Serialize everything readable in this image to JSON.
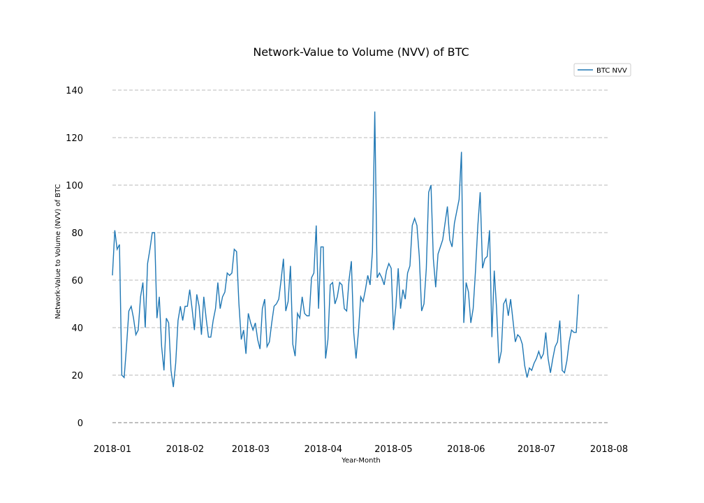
{
  "chart_data": {
    "type": "line",
    "title": "Network-Value to Volume (NVV) of BTC",
    "xlabel": "Year-Month",
    "ylabel": "Network-Value to Volume (NVV) of BTC",
    "x_ticks": [
      "2018-01",
      "2018-02",
      "2018-03",
      "2018-04",
      "2018-05",
      "2018-06",
      "2018-07",
      "2018-08"
    ],
    "y_ticks": [
      0,
      20,
      40,
      60,
      80,
      100,
      120,
      140
    ],
    "ylim": [
      -5,
      145
    ],
    "xlim": [
      "2018-01-01",
      "2018-08-01"
    ],
    "grid": "horizontal-dashed",
    "legend_position": "top-right",
    "series_color": "#1f77b4",
    "series": [
      {
        "name": "BTC NVV",
        "start_date": "2018-01-01",
        "values": [
          62,
          81,
          73,
          75,
          20,
          19,
          32,
          47,
          49,
          44,
          37,
          39,
          53,
          59,
          40,
          67,
          73,
          80,
          80,
          44,
          53,
          32,
          22,
          44,
          42,
          22,
          15,
          25,
          43,
          49,
          43,
          49,
          49,
          56,
          48,
          39,
          54,
          49,
          37,
          53,
          44,
          36,
          36,
          43,
          48,
          59,
          48,
          53,
          55,
          63,
          62,
          63,
          73,
          72,
          50,
          35,
          39,
          29,
          46,
          42,
          39,
          42,
          35,
          31,
          48,
          52,
          32,
          34,
          42,
          49,
          50,
          52,
          60,
          69,
          47,
          51,
          66,
          33,
          28,
          46,
          44,
          53,
          46,
          45,
          45,
          61,
          63,
          83,
          48,
          74,
          74,
          27,
          35,
          58,
          59,
          50,
          53,
          59,
          58,
          48,
          47,
          60,
          68,
          38,
          27,
          38,
          53,
          51,
          56,
          62,
          58,
          72,
          131,
          61,
          63,
          61,
          58,
          64,
          67,
          65,
          39,
          49,
          65,
          48,
          56,
          52,
          63,
          66,
          83,
          86,
          83,
          70,
          47,
          50,
          65,
          97,
          100,
          69,
          57,
          71,
          74,
          77,
          84,
          91,
          77,
          74,
          84,
          89,
          94,
          114,
          42,
          59,
          55,
          42,
          48,
          64,
          83,
          97,
          65,
          69,
          70,
          81,
          36,
          64,
          48,
          25,
          30,
          50,
          52,
          45,
          52,
          43,
          34,
          37,
          36,
          33,
          24,
          19,
          23,
          22,
          25,
          27,
          30,
          27,
          29,
          38,
          27,
          21,
          27,
          32,
          34,
          43,
          22,
          21,
          26,
          34,
          39,
          38,
          38,
          54
        ]
      }
    ]
  }
}
